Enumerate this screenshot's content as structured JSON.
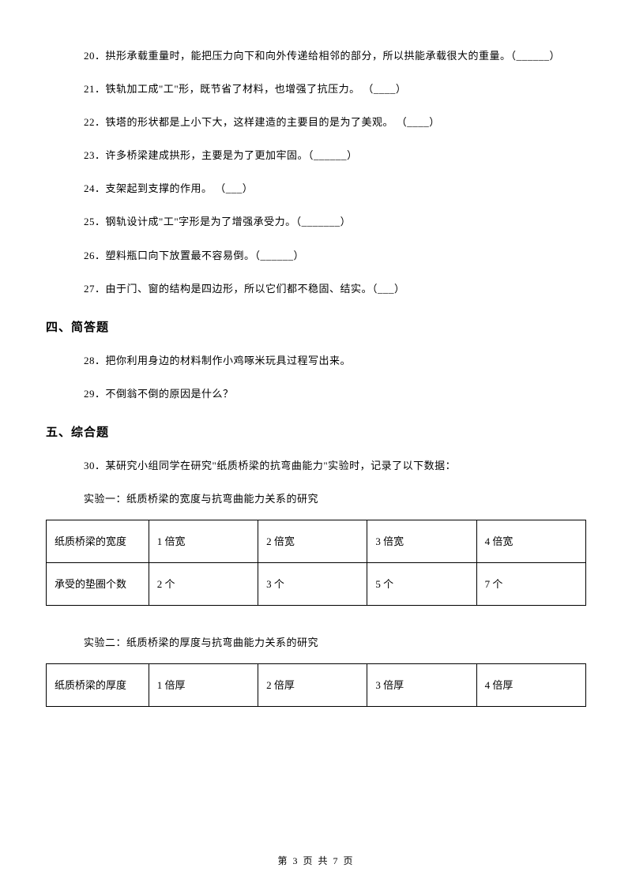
{
  "questions_block1": [
    {
      "num": "20",
      "text": "拱形承载重量时，能把压力向下和向外传递给相邻的部分，所以拱能承载很大的重量。（______）"
    },
    {
      "num": "21",
      "text": "铁轨加工成\"工\"形，既节省了材料，也增强了抗压力。  （____）"
    },
    {
      "num": "22",
      "text": "铁塔的形状都是上小下大，这样建造的主要目的是为了美观。    （____）"
    },
    {
      "num": "23",
      "text": "许多桥梁建成拱形，主要是为了更加牢固。（______）"
    },
    {
      "num": "24",
      "text": "支架起到支撑的作用。  （___）"
    },
    {
      "num": "25",
      "text": "钢轨设计成\"工\"字形是为了增强承受力。（_______）"
    },
    {
      "num": "26",
      "text": "塑料瓶口向下放置最不容易倒。（______）"
    },
    {
      "num": "27",
      "text": "由于门、窗的结构是四边形，所以它们都不稳固、结实。（___）"
    }
  ],
  "section4": {
    "title": "四、简答题",
    "items": [
      {
        "num": "28",
        "text": "把你利用身边的材料制作小鸡啄米玩具过程写出来。"
      },
      {
        "num": "29",
        "text": "不倒翁不倒的原因是什么？"
      }
    ]
  },
  "section5": {
    "title": "五、综合题",
    "intro_num": "30",
    "intro_text": "某研究小组同学在研究\"纸质桥梁的抗弯曲能力\"实验时，记录了以下数据：",
    "experiment1": {
      "label": "实验一：纸质桥梁的宽度与抗弯曲能力关系的研究",
      "table": {
        "row1": [
          "纸质桥梁的宽度",
          "1 倍宽",
          "2 倍宽",
          "3 倍宽",
          "4 倍宽"
        ],
        "row2": [
          "承受的垫圈个数",
          "2 个",
          "3 个",
          "5 个",
          "7 个"
        ]
      }
    },
    "experiment2": {
      "label": "实验二：纸质桥梁的厚度与抗弯曲能力关系的研究",
      "table": {
        "row1": [
          "纸质桥梁的厚度",
          "1 倍厚",
          "2 倍厚",
          "3 倍厚",
          "4 倍厚"
        ]
      }
    }
  },
  "footer": {
    "current": "3",
    "total": "7",
    "prefix": "第 ",
    "mid": " 页 共 ",
    "suffix": " 页"
  }
}
